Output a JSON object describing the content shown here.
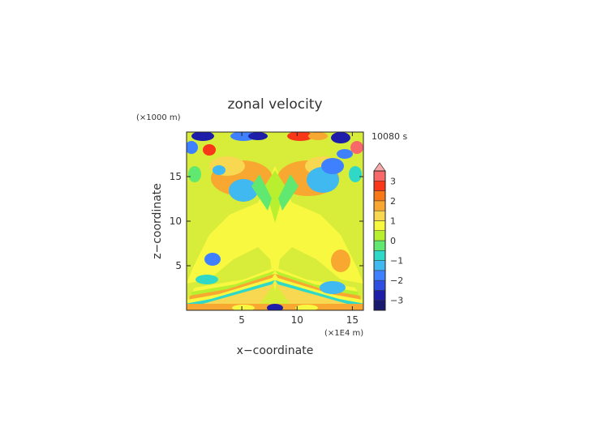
{
  "chart_data": {
    "type": "heatmap",
    "title": "zonal velocity",
    "xlabel": "x−coordinate",
    "ylabel": "z−coordinate",
    "x_unit": "(×1E4 m)",
    "y_unit": "(×1000 m)",
    "time_label": "10080 s",
    "xlim": [
      0,
      16
    ],
    "ylim": [
      0,
      20
    ],
    "xticks": [
      5,
      10,
      15
    ],
    "xtick_labels": [
      "5",
      "10",
      "15"
    ],
    "yticks": [
      5,
      10,
      15
    ],
    "ytick_labels": [
      "5",
      "10",
      "15"
    ],
    "colorbar": {
      "range": [
        -3.5,
        3.5
      ],
      "step": 0.5,
      "ticks": [
        3,
        2,
        1,
        0,
        -1,
        -2,
        -3
      ],
      "tick_labels": [
        "3",
        "2",
        "1",
        "0",
        "−1",
        "−2",
        "−3"
      ],
      "colors": [
        "#1a1a6e",
        "#1e1ea8",
        "#2e4fe0",
        "#3f80ff",
        "#40b8f0",
        "#30d8c8",
        "#60e870",
        "#b8f030",
        "#f8f840",
        "#f8d850",
        "#f8a830",
        "#f87818",
        "#f83818",
        "#f86868",
        "#f8a8a8"
      ],
      "extend": "max"
    }
  }
}
